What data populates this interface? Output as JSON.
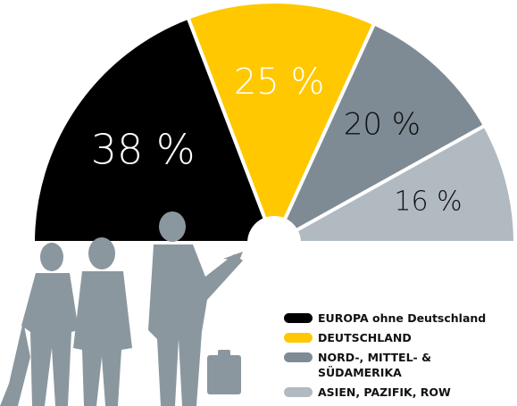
{
  "chart_data": {
    "type": "pie",
    "categories": [
      "EUROPA ohne Deutschland",
      "DEUTSCHLAND",
      "NORD-, MITTEL- & SÜDAMERIKA",
      "ASIEN, PAZIFIK, ROW"
    ],
    "values": [
      38,
      25,
      20,
      16
    ],
    "value_labels": [
      "38 %",
      "25 %",
      "20 %",
      "16 %"
    ],
    "colors": [
      "#000000",
      "#ffc800",
      "#7e8b95",
      "#b1b9c1"
    ]
  }
}
